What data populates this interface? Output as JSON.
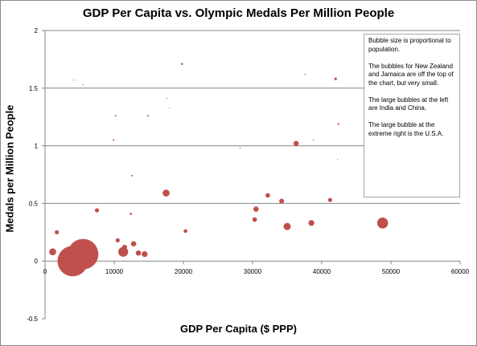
{
  "chart_data": {
    "type": "scatter",
    "title": "GDP Per Capita  vs. Olympic Medals Per Million People",
    "xlabel": "GDP Per Capita ($ PPP)",
    "ylabel": "Medals per Million People",
    "xlim": [
      0,
      60000
    ],
    "ylim": [
      -0.5,
      2
    ],
    "xticks": [
      0,
      10000,
      20000,
      30000,
      40000,
      50000,
      60000
    ],
    "yticks": [
      -0.5,
      0,
      0.5,
      1,
      1.5,
      2
    ],
    "xtick_labels": [
      "0",
      "10000",
      "20000",
      "30000",
      "40000",
      "50000",
      "60000"
    ],
    "ytick_labels": [
      "-0.5",
      "0",
      "0.5",
      "1",
      "1.5",
      "2"
    ],
    "gridlines": "horizontal",
    "bubble_color": "#c0504d",
    "points": [
      {
        "x": 4000,
        "y": 0.0,
        "size": 1330
      },
      {
        "x": 5500,
        "y": 0.06,
        "size": 1340
      },
      {
        "x": 1100,
        "y": 0.08,
        "size": 70
      },
      {
        "x": 1700,
        "y": 0.25,
        "size": 25
      },
      {
        "x": 4200,
        "y": 1.57,
        "size": 1
      },
      {
        "x": 5500,
        "y": 1.53,
        "size": 2
      },
      {
        "x": 7500,
        "y": 0.44,
        "size": 25
      },
      {
        "x": 10200,
        "y": 1.26,
        "size": 4
      },
      {
        "x": 9900,
        "y": 1.05,
        "size": 4
      },
      {
        "x": 10500,
        "y": 0.18,
        "size": 25
      },
      {
        "x": 11300,
        "y": 0.08,
        "size": 140
      },
      {
        "x": 11500,
        "y": 0.12,
        "size": 35
      },
      {
        "x": 12400,
        "y": 0.41,
        "size": 7
      },
      {
        "x": 12600,
        "y": 0.74,
        "size": 4
      },
      {
        "x": 12800,
        "y": 0.15,
        "size": 40
      },
      {
        "x": 13500,
        "y": 0.07,
        "size": 40
      },
      {
        "x": 14400,
        "y": 0.06,
        "size": 50
      },
      {
        "x": 14900,
        "y": 1.26,
        "size": 4
      },
      {
        "x": 17500,
        "y": 0.59,
        "size": 70
      },
      {
        "x": 17600,
        "y": 1.41,
        "size": 1
      },
      {
        "x": 18000,
        "y": 1.33,
        "size": 1
      },
      {
        "x": 19800,
        "y": 1.71,
        "size": 6
      },
      {
        "x": 20300,
        "y": 0.26,
        "size": 20
      },
      {
        "x": 28200,
        "y": 0.98,
        "size": 2
      },
      {
        "x": 30300,
        "y": 0.36,
        "size": 30
      },
      {
        "x": 30500,
        "y": 0.45,
        "size": 40
      },
      {
        "x": 32200,
        "y": 0.57,
        "size": 30
      },
      {
        "x": 34200,
        "y": 0.52,
        "size": 35
      },
      {
        "x": 35000,
        "y": 0.3,
        "size": 75
      },
      {
        "x": 36300,
        "y": 1.02,
        "size": 40
      },
      {
        "x": 37600,
        "y": 1.62,
        "size": 2
      },
      {
        "x": 38500,
        "y": 0.33,
        "size": 50
      },
      {
        "x": 38800,
        "y": 1.05,
        "size": 2
      },
      {
        "x": 41200,
        "y": 0.53,
        "size": 25
      },
      {
        "x": 42000,
        "y": 1.58,
        "size": 10
      },
      {
        "x": 42400,
        "y": 1.19,
        "size": 5
      },
      {
        "x": 42300,
        "y": 0.88,
        "size": 1
      },
      {
        "x": 48800,
        "y": 0.33,
        "size": 170
      }
    ]
  },
  "note": {
    "paragraphs": [
      "Bubble  size is proportional  to population.",
      "The bubbles  for New Zealand and Jamaica are off the top of the chart, but  very small.",
      "The large bubbles  at the left are India  and China.",
      "The large bubble  at the extreme  right is the U.S.A."
    ]
  }
}
